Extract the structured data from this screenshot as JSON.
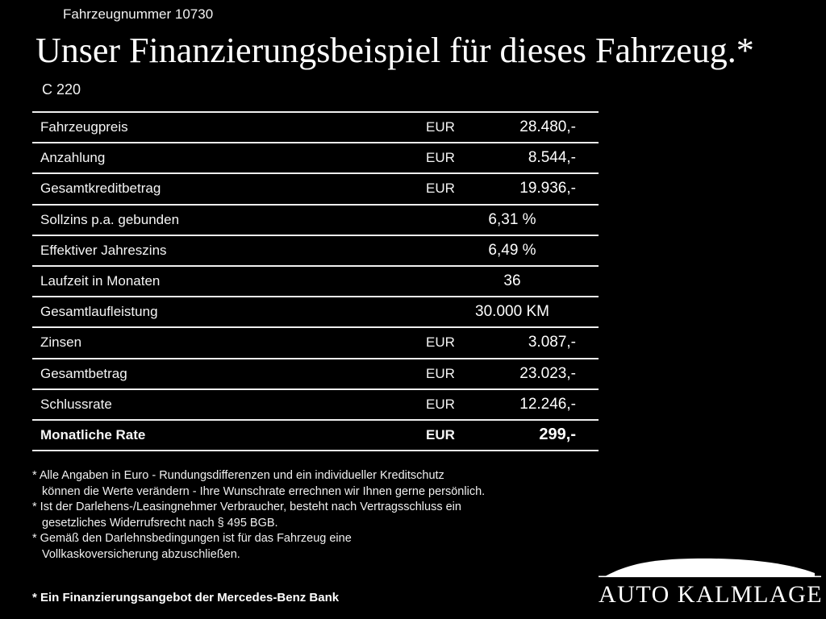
{
  "page": {
    "vehicle_number": "Fahrzeugnummer 10730",
    "title": "Unser Finanzierungsbeispiel für dieses Fahrzeug.*",
    "model": "C 220"
  },
  "table": {
    "rows": [
      {
        "label": "Fahrzeugpreis",
        "currency": "EUR",
        "value": "28.480,-",
        "bold": false
      },
      {
        "label": "Anzahlung",
        "currency": "EUR",
        "value": "8.544,-",
        "bold": false
      },
      {
        "label": "Gesamtkreditbetrag",
        "currency": "EUR",
        "value": "19.936,-",
        "bold": false
      },
      {
        "label": "Sollzins p.a. gebunden",
        "currency": "",
        "value": "6,31 %",
        "bold": false
      },
      {
        "label": "Effektiver Jahreszins",
        "currency": "",
        "value": "6,49 %",
        "bold": false
      },
      {
        "label": "Laufzeit in Monaten",
        "currency": "",
        "value": "36",
        "bold": false
      },
      {
        "label": "Gesamtlaufleistung",
        "currency": "",
        "value": "30.000 KM",
        "bold": false
      },
      {
        "label": "Zinsen",
        "currency": "EUR",
        "value": "3.087,-",
        "bold": false
      },
      {
        "label": "Gesamtbetrag",
        "currency": "EUR",
        "value": "23.023,-",
        "bold": false
      },
      {
        "label": "Schlussrate",
        "currency": "EUR",
        "value": "12.246,-",
        "bold": false
      },
      {
        "label": "Monatliche Rate",
        "currency": "EUR",
        "value": "299,-",
        "bold": true
      }
    ]
  },
  "footnotes": [
    {
      "lines": [
        "* Alle Angaben in Euro - Rundungsdifferenzen und ein individueller Kreditschutz",
        "können die Werte verändern - Ihre Wunschrate errechnen wir Ihnen gerne persönlich."
      ]
    },
    {
      "lines": [
        "* Ist der Darlehens-/Leasingnehmer Verbraucher, besteht nach Vertragsschluss ein",
        "gesetzliches Widerrufsrecht nach § 495 BGB."
      ]
    },
    {
      "lines": [
        "* Gemäß den Darlehnsbedingungen ist für das Fahrzeug eine",
        "Vollkaskoversicherung abzuschließen."
      ]
    }
  ],
  "footer": {
    "offer": "* Ein Finanzierungsangebot der Mercedes-Benz Bank",
    "dealer_name": "AUTO KALMLAGE"
  },
  "colors": {
    "background": "#000000",
    "text": "#ffffff",
    "rule": "#efefef"
  }
}
